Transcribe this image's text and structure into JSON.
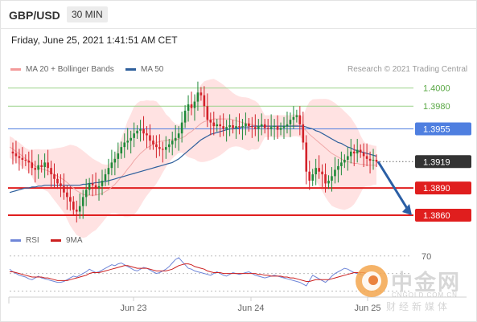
{
  "header": {
    "symbol": "GBP/USD",
    "timeframe": "30 MIN"
  },
  "timestamp": "Friday, June 25, 2021 1:41:51 AM CET",
  "legend": {
    "ma20_label": "MA 20 + Bollinger Bands",
    "ma50_label": "MA 50",
    "credit": "Research © 2021 Trading Central"
  },
  "rsi_legend": {
    "rsi_label": "RSI",
    "ma_label": "9MA",
    "level_label": "70"
  },
  "watermark": {
    "name": "中金网",
    "url": "CNGOLD.COM.CN",
    "sub": "财经新媒体"
  },
  "colors": {
    "resistance": "#9bd28a",
    "pivot": "#4f7fe0",
    "support": "#e01e1e",
    "up_candle": "#1f8a3a",
    "down_candle": "#d3222a",
    "bollinger_fill": "#ffd8d8",
    "ma20": "#f0a8a8",
    "ma50": "#2e5f9c",
    "current": "#333333",
    "forecast_arrow": "#2b5fa5",
    "rsi": "#6f86d8",
    "rsi_ma": "#cc2020"
  },
  "chart_data": [
    {
      "type": "line",
      "title": "GBP/USD 30 MIN",
      "x_labels": [
        "Jun 23",
        "Jun 24",
        "Jun 25"
      ],
      "ylim": [
        1.3845,
        1.4012
      ],
      "horizontal_levels": [
        {
          "label": "1.4000",
          "value": 1.4,
          "role": "resistance"
        },
        {
          "label": "1.3980",
          "value": 1.398,
          "role": "resistance"
        },
        {
          "label": "1.3955",
          "value": 1.3955,
          "role": "pivot"
        },
        {
          "label": "1.3919",
          "value": 1.3919,
          "role": "current"
        },
        {
          "label": "1.3890",
          "value": 1.389,
          "role": "support"
        },
        {
          "label": "1.3860",
          "value": 1.386,
          "role": "support"
        }
      ],
      "forecast": {
        "from": 1.3919,
        "to": 1.386
      },
      "series": [
        {
          "name": "Close",
          "values": [
            1.393,
            1.3928,
            1.3925,
            1.3923,
            1.3921,
            1.392,
            1.3918,
            1.3912,
            1.391,
            1.3915,
            1.3913,
            1.3918,
            1.3912,
            1.3905,
            1.39,
            1.3895,
            1.3892,
            1.3885,
            1.388,
            1.3875,
            1.3866,
            1.3864,
            1.387,
            1.388,
            1.3888,
            1.3895,
            1.3893,
            1.389,
            1.3892,
            1.3898,
            1.3905,
            1.3912,
            1.3918,
            1.3922,
            1.3928,
            1.3935,
            1.394,
            1.3942,
            1.3945,
            1.395,
            1.3953,
            1.3955,
            1.395,
            1.3948,
            1.3942,
            1.3938,
            1.3935,
            1.3933,
            1.3932,
            1.3935,
            1.3938,
            1.3942,
            1.3945,
            1.395,
            1.3962,
            1.3975,
            1.3982,
            1.3978,
            1.3985,
            1.3995,
            1.3992,
            1.398,
            1.3965,
            1.3962,
            1.3958,
            1.396,
            1.3958,
            1.3955,
            1.3957,
            1.3959,
            1.3956,
            1.3958,
            1.3957,
            1.3958,
            1.3961,
            1.3958,
            1.3957,
            1.3955,
            1.3958,
            1.396,
            1.3956,
            1.3955,
            1.3957,
            1.3958,
            1.3954,
            1.3956,
            1.3958,
            1.396,
            1.3965,
            1.3968,
            1.397,
            1.396,
            1.394,
            1.3908,
            1.3898,
            1.3905,
            1.3912,
            1.3908,
            1.3905,
            1.3895,
            1.3898,
            1.3903,
            1.391,
            1.3914,
            1.3918,
            1.3921,
            1.3925,
            1.393,
            1.3928,
            1.3932,
            1.3929,
            1.3925,
            1.3922,
            1.392,
            1.3921,
            1.3919
          ]
        },
        {
          "name": "MA 20",
          "values": [
            1.3935,
            1.3933,
            1.393,
            1.3928,
            1.3925,
            1.3922,
            1.392,
            1.3917,
            1.3914,
            1.3912,
            1.3911,
            1.391,
            1.3909,
            1.3907,
            1.3905,
            1.3903,
            1.3901,
            1.3899,
            1.3896,
            1.3893,
            1.389,
            1.3887,
            1.3885,
            1.3883,
            1.3882,
            1.3882,
            1.3882,
            1.3882,
            1.3883,
            1.3884,
            1.3886,
            1.3888,
            1.3891,
            1.3894,
            1.3898,
            1.3902,
            1.3906,
            1.3911,
            1.3915,
            1.392,
            1.3924,
            1.3928,
            1.3931,
            1.3934,
            1.3936,
            1.3938,
            1.394,
            1.3941,
            1.3942,
            1.3942,
            1.3943,
            1.3943,
            1.3943,
            1.3944,
            1.3945,
            1.3947,
            1.395,
            1.3952,
            1.3955,
            1.3958,
            1.3961,
            1.3963,
            1.3964,
            1.3965,
            1.3966,
            1.3966,
            1.3966,
            1.3966,
            1.3966,
            1.3966,
            1.3965,
            1.3964,
            1.3963,
            1.3962,
            1.3961,
            1.396,
            1.396,
            1.3959,
            1.3958,
            1.3958,
            1.3958,
            1.3958,
            1.3958,
            1.3958,
            1.3958,
            1.3958,
            1.3958,
            1.3958,
            1.3958,
            1.3959,
            1.3959,
            1.3958,
            1.3956,
            1.3953,
            1.3949,
            1.3946,
            1.3943,
            1.394,
            1.3937,
            1.3934,
            1.3931,
            1.3928,
            1.3926,
            1.3924,
            1.3922,
            1.392,
            1.3919,
            1.3918,
            1.3917,
            1.3917,
            1.3916,
            1.3916,
            1.3915,
            1.3915,
            1.3915,
            1.3915
          ]
        },
        {
          "name": "MA 50",
          "values": [
            1.3885,
            1.3886,
            1.3887,
            1.3888,
            1.3889,
            1.389,
            1.389,
            1.3891,
            1.3891,
            1.3892,
            1.3892,
            1.3893,
            1.3893,
            1.3893,
            1.3893,
            1.3893,
            1.3893,
            1.3893,
            1.3893,
            1.3893,
            1.3893,
            1.3893,
            1.3893,
            1.3894,
            1.3894,
            1.3895,
            1.3895,
            1.3896,
            1.3896,
            1.3897,
            1.3897,
            1.3898,
            1.3899,
            1.39,
            1.3901,
            1.3902,
            1.3903,
            1.3904,
            1.3905,
            1.3906,
            1.3907,
            1.3908,
            1.3909,
            1.391,
            1.3911,
            1.3912,
            1.3913,
            1.3914,
            1.3915,
            1.3916,
            1.3917,
            1.3918,
            1.392,
            1.3922,
            1.3925,
            1.3928,
            1.3931,
            1.3934,
            1.3937,
            1.394,
            1.3943,
            1.3945,
            1.3947,
            1.3949,
            1.395,
            1.3951,
            1.3952,
            1.3953,
            1.3954,
            1.3955,
            1.3955,
            1.3956,
            1.3956,
            1.3957,
            1.3957,
            1.3957,
            1.3958,
            1.3958,
            1.3958,
            1.3958,
            1.3958,
            1.3958,
            1.3958,
            1.3958,
            1.3958,
            1.3958,
            1.3958,
            1.3958,
            1.3958,
            1.3958,
            1.3958,
            1.3958,
            1.3958,
            1.3957,
            1.3956,
            1.3955,
            1.3953,
            1.3952,
            1.395,
            1.3948,
            1.3946,
            1.3944,
            1.3942,
            1.394,
            1.3939,
            1.3937,
            1.3935,
            1.3934,
            1.3932,
            1.3931,
            1.393,
            1.3929,
            1.3928,
            1.3927,
            1.3926,
            1.3925
          ]
        }
      ]
    },
    {
      "type": "line",
      "title": "RSI",
      "ylim": [
        25,
        78
      ],
      "reference_levels": [
        70,
        50,
        30
      ],
      "series": [
        {
          "name": "RSI",
          "values": [
            55,
            52,
            50,
            48,
            47,
            46,
            44,
            43,
            45,
            47,
            45,
            44,
            43,
            42,
            41,
            40,
            40,
            41,
            43,
            45,
            47,
            46,
            48,
            50,
            52,
            55,
            53,
            51,
            52,
            54,
            56,
            58,
            60,
            59,
            61,
            62,
            60,
            58,
            56,
            54,
            53,
            55,
            57,
            56,
            54,
            52,
            50,
            51,
            53,
            55,
            58,
            62,
            66,
            68,
            64,
            60,
            56,
            55,
            53,
            52,
            51,
            50,
            49,
            48,
            50,
            52,
            50,
            48,
            47,
            49,
            51,
            50,
            49,
            50,
            51,
            52,
            50,
            48,
            47,
            46,
            45,
            46,
            47,
            48,
            47,
            46,
            45,
            44,
            43,
            42,
            41,
            40,
            38,
            36,
            42,
            48,
            46,
            44,
            42,
            40,
            43,
            47,
            50,
            52,
            54,
            56,
            55,
            53,
            51,
            50,
            49,
            48,
            48,
            47,
            47,
            46
          ]
        },
        {
          "name": "9MA",
          "values": [
            52,
            52,
            51,
            50,
            49,
            48,
            47,
            46,
            46,
            46,
            46,
            45,
            45,
            44,
            43,
            42,
            42,
            42,
            42,
            43,
            44,
            45,
            46,
            47,
            48,
            50,
            51,
            51,
            51,
            52,
            53,
            54,
            55,
            56,
            57,
            58,
            59,
            59,
            58,
            57,
            56,
            56,
            56,
            56,
            55,
            54,
            53,
            53,
            53,
            53,
            54,
            55,
            57,
            59,
            60,
            61,
            61,
            60,
            58,
            57,
            56,
            55,
            53,
            52,
            51,
            51,
            51,
            50,
            50,
            50,
            50,
            50,
            50,
            50,
            50,
            50,
            50,
            50,
            49,
            49,
            48,
            48,
            47,
            47,
            47,
            47,
            46,
            46,
            45,
            45,
            44,
            43,
            42,
            41,
            41,
            42,
            43,
            43,
            43,
            43,
            43,
            44,
            45,
            46,
            47,
            48,
            49,
            50,
            51,
            51,
            51,
            51,
            50,
            50,
            49,
            48
          ]
        }
      ]
    }
  ]
}
